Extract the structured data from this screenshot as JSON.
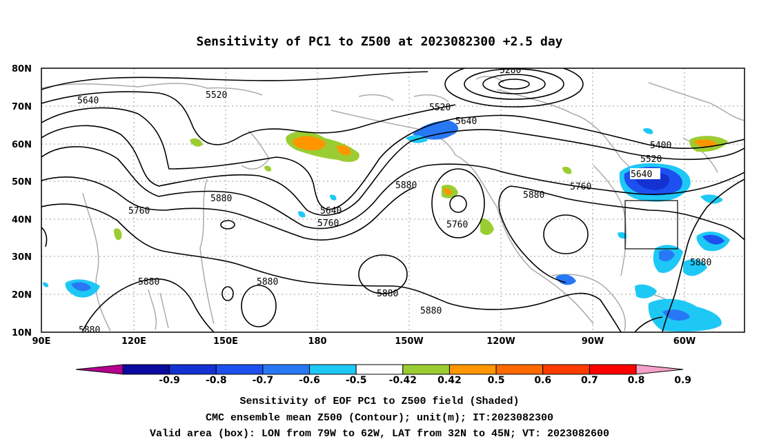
{
  "title": "Sensitivity of PC1 to Z500 at 2023082300 +2.5 day",
  "lat_labels": [
    "80N",
    "70N",
    "60N",
    "50N",
    "40N",
    "30N",
    "20N",
    "10N"
  ],
  "lon_labels": [
    "90E",
    "120E",
    "150E",
    "180",
    "150W",
    "120W",
    "90W",
    "60W"
  ],
  "contour_labels": {
    "c5280": "5280",
    "c5520a": "5520",
    "c5520b": "5520",
    "c5520c": "5520",
    "c5640a": "5640",
    "c5640b": "5640",
    "c5640c": "5640",
    "c5640d": "5640",
    "c5400": "5400",
    "c5760a": "5760",
    "c5760b": "5760",
    "c5760c": "5760",
    "c5760d": "5760",
    "c5880a": "5880",
    "c5880b": "5880",
    "c5880c": "5880",
    "c5880d": "5880",
    "c5880e": "5880",
    "c5880f": "5880",
    "c5880g": "5880",
    "c5880h": "5880",
    "c5880i": "5880",
    "c5880j": "5880"
  },
  "colorbar": {
    "labels": [
      "-0.9",
      "-0.8",
      "-0.7",
      "-0.6",
      "-0.5",
      "-0.42",
      "0.42",
      "0.5",
      "0.6",
      "0.7",
      "0.8",
      "0.9"
    ],
    "colors": [
      "#b4008c",
      "#0a0aa0",
      "#1432d2",
      "#1e50f0",
      "#2878f5",
      "#1ec8f5",
      "#ffffff",
      "#9bcd32",
      "#ff9600",
      "#ff6a00",
      "#ff3c00",
      "#ff0000",
      "#f5a0c8"
    ]
  },
  "caption": {
    "line1": "Sensitivity of EOF PC1 to Z500 field (Shaded)",
    "line2": "CMC ensemble mean Z500 (Contour); unit(m); IT:2023082300",
    "line3": "Valid area (box): LON from 79W to 62W, LAT from 32N to 45N; VT: 2023082600"
  },
  "valid_box": {
    "lon_from": "79W",
    "lon_to": "62W",
    "lat_from": "32N",
    "lat_to": "45N"
  }
}
